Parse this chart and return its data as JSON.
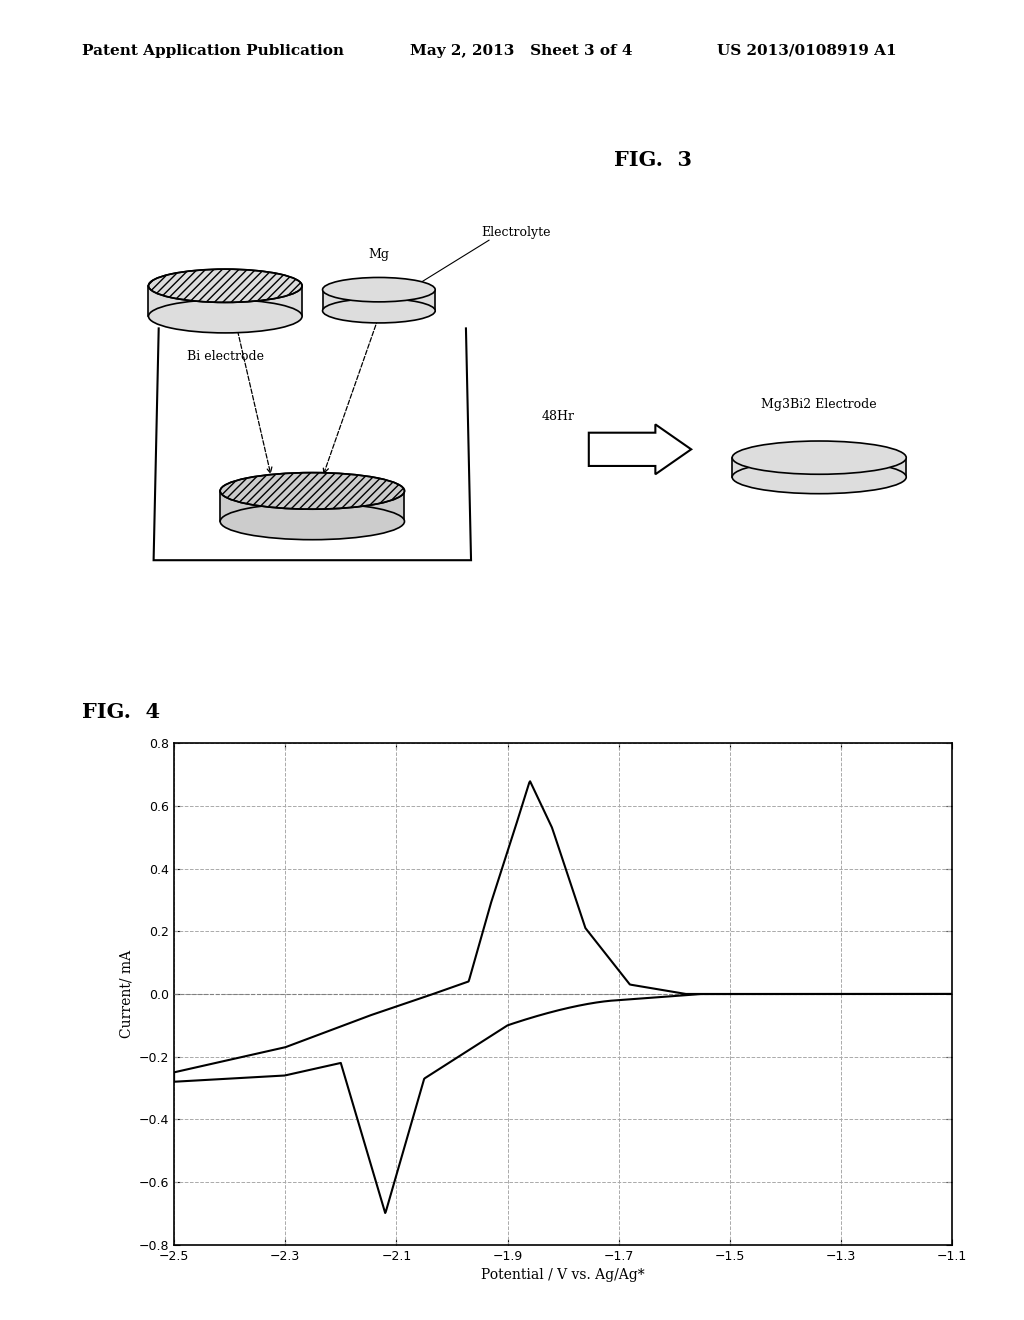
{
  "header_left": "Patent Application Publication",
  "header_mid": "May 2, 2013   Sheet 3 of 4",
  "header_right": "US 2013/0108919 A1",
  "fig3_label": "FIG.  3",
  "fig4_label": "FIG.  4",
  "bi_electrode_label": "Bi electrode",
  "mg_label": "Mg",
  "electrolyte_label": "Electrolyte",
  "time_label": "48Hr",
  "product_label": "Mg3Bi2 Electrode",
  "plot_xlabel": "Potential / V vs. Ag/Ag*",
  "plot_ylabel": "Current/ mA",
  "plot_xlim": [
    -2.5,
    -1.1
  ],
  "plot_ylim": [
    -0.8,
    0.8
  ],
  "plot_xticks": [
    -2.5,
    -2.3,
    -2.1,
    -1.9,
    -1.7,
    -1.5,
    -1.3,
    -1.1
  ],
  "plot_yticks": [
    -0.8,
    -0.6,
    -0.4,
    -0.2,
    0.0,
    0.2,
    0.4,
    0.6,
    0.8
  ],
  "background_color": "#ffffff",
  "line_color": "#000000",
  "grid_color": "#aaaaaa",
  "header_fontsize": 11,
  "fig_label_fontsize": 15,
  "tick_label_fontsize": 9,
  "axis_label_fontsize": 10
}
